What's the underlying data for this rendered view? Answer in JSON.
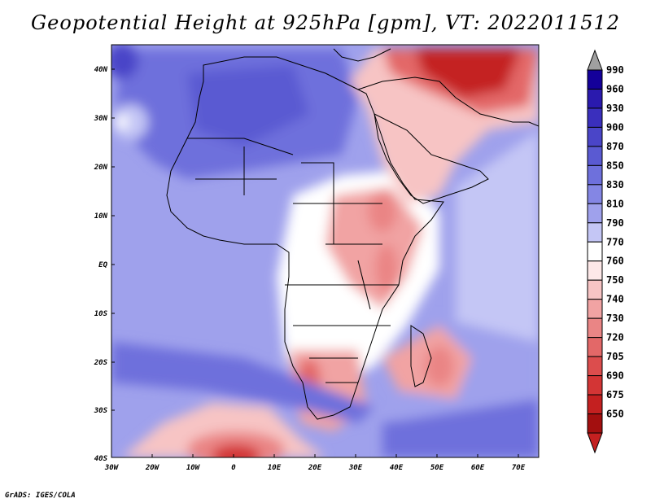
{
  "title": "Geopotential Height at 925hPa [gpm], VT: 2022011512",
  "credit": "GrADS: IGES/COLA",
  "map": {
    "variable": "Geopotential Height",
    "level": "925hPa",
    "units": "gpm",
    "valid_time": "2022011512",
    "lon_range": [
      -30,
      75
    ],
    "lat_range": [
      -40,
      45
    ],
    "lon_ticks": [
      "30W",
      "20W",
      "10W",
      "0",
      "10E",
      "20E",
      "30E",
      "40E",
      "50E",
      "60E",
      "70E"
    ],
    "lat_ticks": [
      "40N",
      "30N",
      "20N",
      "10N",
      "EQ",
      "10S",
      "20S",
      "30S",
      "40S"
    ]
  },
  "colorbar": {
    "labels": [
      "990",
      "960",
      "930",
      "900",
      "870",
      "850",
      "830",
      "810",
      "790",
      "770",
      "760",
      "750",
      "740",
      "730",
      "720",
      "705",
      "690",
      "675",
      "650"
    ],
    "colors": [
      "#14009a",
      "#2a1aae",
      "#3a2fbd",
      "#4a45c8",
      "#5a5ad2",
      "#6e70dc",
      "#8486e4",
      "#9fa1ec",
      "#c4c6f5",
      "#ffffff",
      "#fde8e8",
      "#f7c4c4",
      "#f1a3a3",
      "#ea8585",
      "#e36868",
      "#dc4d4d",
      "#d33535",
      "#c42020",
      "#a30f0f"
    ],
    "top_arrow_color": "#a0a0a0",
    "bottom_arrow_color": "#c42020"
  }
}
